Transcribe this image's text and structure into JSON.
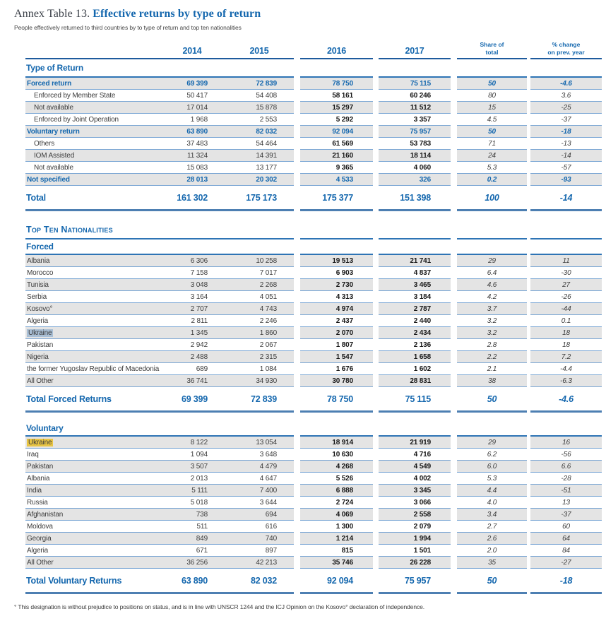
{
  "title": {
    "prefix": "Annex Table 13.",
    "main": "Effective returns by type of return"
  },
  "subtitle": "People effectively returned to third countries by to type of return and top ten nationalities",
  "colors": {
    "accent_blue": "#1467ae",
    "header_rule": "#1e5b9d",
    "row_line": "#7aa6d4",
    "shaded_row": "#e4e4e4",
    "highlight_selection": "#a9bfd5",
    "highlight_yellow": "#e8c544"
  },
  "table": {
    "header": {
      "years": [
        "2014",
        "2015",
        "2016",
        "2017"
      ],
      "share_of_total": [
        "Share of",
        "total"
      ],
      "pct_change": [
        "% change",
        "on prev. year"
      ]
    },
    "sections": [
      {
        "heading": "Type of Return",
        "style": "normal",
        "rows": [
          {
            "label": "Forced return",
            "emphasis": true,
            "shaded": true,
            "v": [
              "69 399",
              "72 839",
              "78 750",
              "75 115",
              "50",
              "-4.6"
            ]
          },
          {
            "label": "Enforced by Member State",
            "indent": true,
            "v": [
              "50 417",
              "54 408",
              "58 161",
              "60 246",
              "80",
              "3.6"
            ]
          },
          {
            "label": "Not available",
            "indent": true,
            "shaded": true,
            "v": [
              "17 014",
              "15 878",
              "15 297",
              "11 512",
              "15",
              "-25"
            ]
          },
          {
            "label": "Enforced by Joint Operation",
            "indent": true,
            "v": [
              "1 968",
              "2 553",
              "5 292",
              "3 357",
              "4.5",
              "-37"
            ]
          },
          {
            "label": "Voluntary return",
            "emphasis": true,
            "shaded": true,
            "v": [
              "63 890",
              "82 032",
              "92 094",
              "75 957",
              "50",
              "-18"
            ]
          },
          {
            "label": "Others",
            "indent": true,
            "v": [
              "37 483",
              "54 464",
              "61 569",
              "53 783",
              "71",
              "-13"
            ]
          },
          {
            "label": "IOM Assisted",
            "indent": true,
            "shaded": true,
            "v": [
              "11 324",
              "14 391",
              "21 160",
              "18 114",
              "24",
              "-14"
            ]
          },
          {
            "label": "Not available",
            "indent": true,
            "v": [
              "15 083",
              "13 177",
              "9 365",
              "4 060",
              "5.3",
              "-57"
            ]
          },
          {
            "label": "Not specified",
            "emphasis": true,
            "shaded": true,
            "v": [
              "28 013",
              "20 302",
              "4 533",
              "326",
              "0.2",
              "-93"
            ]
          }
        ],
        "total": {
          "label": "Total",
          "v": [
            "161 302",
            "175 173",
            "175 377",
            "151 398",
            "100",
            "-14"
          ]
        }
      },
      {
        "heading": "Top Ten Nationalities",
        "style": "smallcaps",
        "rows": [],
        "total": null
      },
      {
        "heading": "Forced",
        "style": "slim",
        "rows": [
          {
            "label": "Albania",
            "shaded": true,
            "v": [
              "6 306",
              "10 258",
              "19 513",
              "21 741",
              "29",
              "11"
            ]
          },
          {
            "label": "Morocco",
            "v": [
              "7 158",
              "7 017",
              "6 903",
              "4 837",
              "6.4",
              "-30"
            ]
          },
          {
            "label": "Tunisia",
            "shaded": true,
            "v": [
              "3 048",
              "2 268",
              "2 730",
              "3 465",
              "4.6",
              "27"
            ]
          },
          {
            "label": "Serbia",
            "v": [
              "3 164",
              "4 051",
              "4 313",
              "3 184",
              "4.2",
              "-26"
            ]
          },
          {
            "label": "Kosovo°",
            "shaded": true,
            "v": [
              "2 707",
              "4 743",
              "4 974",
              "2 787",
              "3.7",
              "-44"
            ]
          },
          {
            "label": "Algeria",
            "v": [
              "2 811",
              "2 246",
              "2 437",
              "2 440",
              "3.2",
              "0.1"
            ]
          },
          {
            "label": "Ukraine",
            "shaded": true,
            "highlight": "selection",
            "v": [
              "1 345",
              "1 860",
              "2 070",
              "2 434",
              "3.2",
              "18"
            ]
          },
          {
            "label": "Pakistan",
            "v": [
              "2 942",
              "2 067",
              "1 807",
              "2 136",
              "2.8",
              "18"
            ]
          },
          {
            "label": "Nigeria",
            "shaded": true,
            "v": [
              "2 488",
              "2 315",
              "1 547",
              "1 658",
              "2.2",
              "7.2"
            ]
          },
          {
            "label": "the former Yugoslav Republic of Macedonia",
            "v": [
              "689",
              "1 084",
              "1 676",
              "1 602",
              "2.1",
              "-4.4"
            ]
          },
          {
            "label": "All Other",
            "shaded": true,
            "v": [
              "36 741",
              "34 930",
              "30 780",
              "28 831",
              "38",
              "-6.3"
            ]
          }
        ],
        "total": {
          "label": "Total Forced Returns",
          "v": [
            "69 399",
            "72 839",
            "78 750",
            "75 115",
            "50",
            "-4.6"
          ]
        }
      },
      {
        "heading": "Voluntary",
        "style": "slim gap",
        "rows": [
          {
            "label": "Ukraine",
            "shaded": true,
            "highlight": "yellow",
            "v": [
              "8 122",
              "13 054",
              "18 914",
              "21 919",
              "29",
              "16"
            ]
          },
          {
            "label": "Iraq",
            "v": [
              "1 094",
              "3 648",
              "10 630",
              "4 716",
              "6.2",
              "-56"
            ]
          },
          {
            "label": "Pakistan",
            "shaded": true,
            "v": [
              "3 507",
              "4 479",
              "4 268",
              "4 549",
              "6.0",
              "6.6"
            ]
          },
          {
            "label": "Albania",
            "v": [
              "2 013",
              "4 647",
              "5 526",
              "4 002",
              "5.3",
              "-28"
            ]
          },
          {
            "label": "India",
            "shaded": true,
            "v": [
              "5 111",
              "7 400",
              "6 888",
              "3 345",
              "4.4",
              "-51"
            ]
          },
          {
            "label": "Russia",
            "v": [
              "5 018",
              "3 644",
              "2 724",
              "3 066",
              "4.0",
              "13"
            ]
          },
          {
            "label": "Afghanistan",
            "shaded": true,
            "v": [
              "738",
              "694",
              "4 069",
              "2 558",
              "3.4",
              "-37"
            ]
          },
          {
            "label": "Moldova",
            "v": [
              "511",
              "616",
              "1 300",
              "2 079",
              "2.7",
              "60"
            ]
          },
          {
            "label": "Georgia",
            "shaded": true,
            "v": [
              "849",
              "740",
              "1 214",
              "1 994",
              "2.6",
              "64"
            ]
          },
          {
            "label": "Algeria",
            "v": [
              "671",
              "897",
              "815",
              "1 501",
              "2.0",
              "84"
            ]
          },
          {
            "label": "All Other",
            "shaded": true,
            "v": [
              "36 256",
              "42 213",
              "35 746",
              "26 228",
              "35",
              "-27"
            ]
          }
        ],
        "total": {
          "label": "Total Voluntary Returns",
          "v": [
            "63 890",
            "82 032",
            "92 094",
            "75 957",
            "50",
            "-18"
          ]
        }
      }
    ]
  },
  "footnote": "° This designation is without prejudice to positions on status, and is in line with UNSCR 1244 and the ICJ Opinion on the Kosovo° declaration of independence."
}
